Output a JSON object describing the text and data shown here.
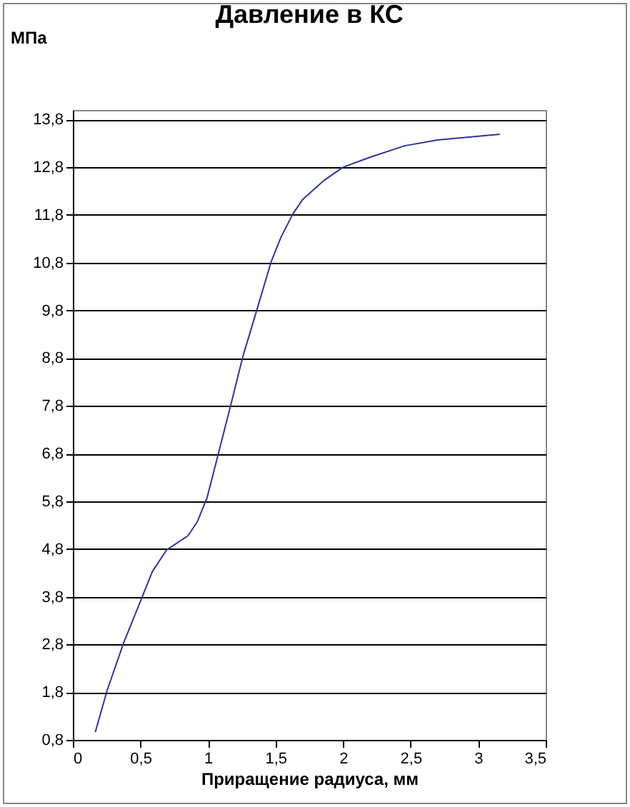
{
  "chart_data": {
    "type": "line",
    "title": "Давление в КС",
    "xlabel": "Приращение радиуса, мм",
    "ylabel": "МПа",
    "series": [
      {
        "color": "#333399",
        "x": [
          0.166,
          0.254,
          0.377,
          0.518,
          0.589,
          0.694,
          0.853,
          0.923,
          0.994,
          1.08,
          1.17,
          1.258,
          1.364,
          1.469,
          1.54,
          1.628,
          1.7,
          1.857,
          2.0,
          2.21,
          2.456,
          2.7,
          3.16
        ],
        "values": [
          0.96,
          1.84,
          2.84,
          3.83,
          4.33,
          4.78,
          5.08,
          5.38,
          5.88,
          6.83,
          7.83,
          8.83,
          9.83,
          10.83,
          11.33,
          11.82,
          12.12,
          12.52,
          12.8,
          13.02,
          13.25,
          13.37,
          13.49
        ]
      }
    ],
    "xlim": [
      0,
      3.5
    ],
    "xticks": [
      0,
      {
        "value": 0.5,
        "label": "0,5"
      },
      1,
      {
        "value": 1.5,
        "label": "1,5"
      },
      2,
      {
        "value": 2.5,
        "label": "2,5"
      },
      3,
      {
        "value": 3.5,
        "label": "3,5"
      }
    ],
    "ylim": [
      0.8,
      14
    ],
    "yticks": [
      {
        "value": 0.8,
        "label": "0,8"
      },
      {
        "value": 1.8,
        "label": "1,8"
      },
      {
        "value": 2.8,
        "label": "2,8"
      },
      {
        "value": 3.8,
        "label": "3,8"
      },
      {
        "value": 4.8,
        "label": "4,8"
      },
      {
        "value": 5.8,
        "label": "5,8"
      },
      {
        "value": 6.8,
        "label": "6,8"
      },
      {
        "value": 7.8,
        "label": "7,8"
      },
      {
        "value": 8.8,
        "label": "8,8"
      },
      {
        "value": 9.8,
        "label": "9,8"
      },
      {
        "value": 10.8,
        "label": "10,8"
      },
      {
        "value": 11.8,
        "label": "11,8"
      },
      {
        "value": 12.8,
        "label": "12,8"
      },
      {
        "value": 13.8,
        "label": "13,8"
      }
    ],
    "grid": "y"
  }
}
